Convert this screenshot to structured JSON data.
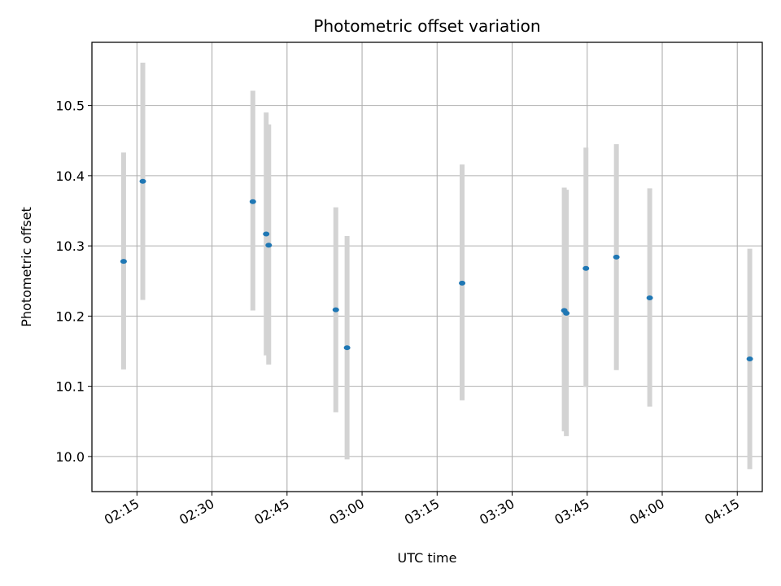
{
  "chart_data": {
    "type": "scatter",
    "title": "Photometric offset variation",
    "xlabel": "UTC time",
    "ylabel": "Photometric offset",
    "x_tick_labels": [
      "02:15",
      "02:30",
      "02:45",
      "03:00",
      "03:15",
      "03:30",
      "03:45",
      "04:00",
      "04:15"
    ],
    "x_tick_times": [
      "02:15",
      "02:30",
      "02:45",
      "03:00",
      "03:15",
      "03:30",
      "03:45",
      "04:00",
      "04:15"
    ],
    "xlim": [
      "02:06",
      "04:20"
    ],
    "y_tick_labels": [
      "10.0",
      "10.1",
      "10.2",
      "10.3",
      "10.4",
      "10.5"
    ],
    "y_ticks": [
      10.0,
      10.1,
      10.2,
      10.3,
      10.4,
      10.5
    ],
    "ylim": [
      9.95,
      10.59
    ],
    "grid": true,
    "marker_color": "#1f77b4",
    "errorbar_color": "#d3d3d3",
    "points": [
      {
        "t": "02:12:20",
        "y": 10.278,
        "lo": 10.124,
        "hi": 10.433
      },
      {
        "t": "02:16:10",
        "y": 10.392,
        "lo": 10.223,
        "hi": 10.561
      },
      {
        "t": "02:38:10",
        "y": 10.363,
        "lo": 10.208,
        "hi": 10.521
      },
      {
        "t": "02:40:50",
        "y": 10.317,
        "lo": 10.144,
        "hi": 10.49
      },
      {
        "t": "02:41:20",
        "y": 10.301,
        "lo": 10.131,
        "hi": 10.473
      },
      {
        "t": "02:54:45",
        "y": 10.209,
        "lo": 10.063,
        "hi": 10.355
      },
      {
        "t": "02:57:00",
        "y": 10.155,
        "lo": 9.996,
        "hi": 10.314
      },
      {
        "t": "03:20:00",
        "y": 10.247,
        "lo": 10.08,
        "hi": 10.416
      },
      {
        "t": "03:40:25",
        "y": 10.208,
        "lo": 10.036,
        "hi": 10.383
      },
      {
        "t": "03:40:50",
        "y": 10.204,
        "lo": 10.029,
        "hi": 10.38
      },
      {
        "t": "03:44:45",
        "y": 10.268,
        "lo": 10.099,
        "hi": 10.44
      },
      {
        "t": "03:50:50",
        "y": 10.284,
        "lo": 10.123,
        "hi": 10.445
      },
      {
        "t": "03:57:30",
        "y": 10.226,
        "lo": 10.071,
        "hi": 10.382
      },
      {
        "t": "04:17:30",
        "y": 10.139,
        "lo": 9.982,
        "hi": 10.296
      }
    ]
  }
}
